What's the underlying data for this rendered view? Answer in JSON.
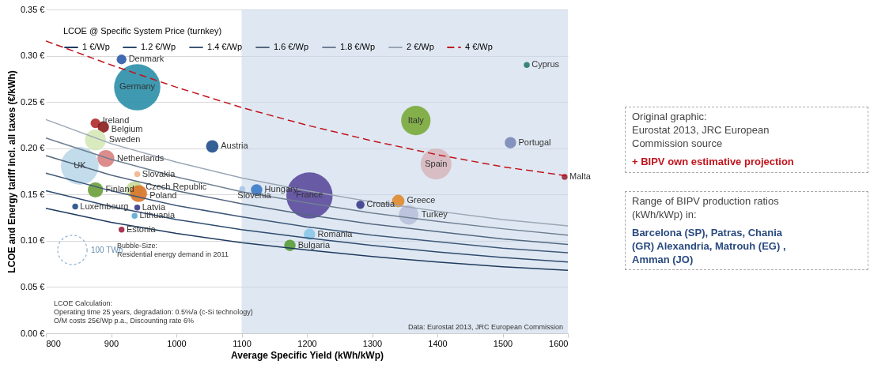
{
  "chart_data": {
    "type": "bubble",
    "xlabel": "Average Specific Yield (kWh/kWp)",
    "ylabel": "LCOE and Energy tariff incl. all taxes (€/kWh)",
    "legend_title": "LCOE @ Specific System Price (turnkey)",
    "xlim": [
      800,
      1600
    ],
    "xticks": [
      800,
      900,
      1000,
      1100,
      1200,
      1300,
      1400,
      1500,
      1600
    ],
    "ylim": [
      0,
      0.35
    ],
    "yticks": [
      {
        "value": 0,
        "label": "0.00 €"
      },
      {
        "value": 0.05,
        "label": "0.05 €"
      },
      {
        "value": 0.1,
        "label": "0.10 €"
      },
      {
        "value": 0.15,
        "label": "0.15 €"
      },
      {
        "value": 0.2,
        "label": "0.20 €"
      },
      {
        "value": 0.25,
        "label": "0.25 €"
      },
      {
        "value": 0.3,
        "label": "0.30 €"
      },
      {
        "value": 0.35,
        "label": "0.35 €"
      }
    ],
    "grid": "y",
    "legend": "top left",
    "size_legend": [
      {
        "value": 100,
        "label": "100 TWh"
      }
    ],
    "bands": [
      {
        "axis": "x",
        "from": 1100,
        "to": 1600,
        "color": "#c9d8ea"
      }
    ],
    "series": [
      {
        "name": "1 €/Wp",
        "type": "line",
        "color": "#1f3a5f",
        "x": [
          800,
          900,
          1000,
          1100,
          1200,
          1300,
          1400,
          1500,
          1600
        ],
        "values": [
          0.135,
          0.12,
          0.108,
          0.098,
          0.09,
          0.083,
          0.077,
          0.072,
          0.068
        ]
      },
      {
        "name": "1.2 €/Wp",
        "type": "line",
        "color": "#2e4a6e",
        "x": [
          800,
          900,
          1000,
          1100,
          1200,
          1300,
          1400,
          1500,
          1600
        ],
        "values": [
          0.154,
          0.137,
          0.123,
          0.112,
          0.103,
          0.095,
          0.088,
          0.082,
          0.077
        ]
      },
      {
        "name": "1.4 €/Wp",
        "type": "line",
        "color": "#3e5878",
        "x": [
          800,
          900,
          1000,
          1100,
          1200,
          1300,
          1400,
          1500,
          1600
        ],
        "values": [
          0.173,
          0.154,
          0.138,
          0.126,
          0.115,
          0.106,
          0.099,
          0.092,
          0.087
        ]
      },
      {
        "name": "1.6 €/Wp",
        "type": "line",
        "color": "#53677f",
        "x": [
          800,
          900,
          1000,
          1100,
          1200,
          1300,
          1400,
          1500,
          1600
        ],
        "values": [
          0.192,
          0.171,
          0.154,
          0.14,
          0.128,
          0.118,
          0.11,
          0.102,
          0.096
        ]
      },
      {
        "name": "1.8 €/Wp",
        "type": "line",
        "color": "#6f7f92",
        "x": [
          800,
          900,
          1000,
          1100,
          1200,
          1300,
          1400,
          1500,
          1600
        ],
        "values": [
          0.211,
          0.188,
          0.169,
          0.153,
          0.141,
          0.13,
          0.121,
          0.113,
          0.106
        ]
      },
      {
        "name": "2 €/Wp",
        "type": "line",
        "color": "#9aa6b4",
        "x": [
          800,
          900,
          1000,
          1100,
          1200,
          1300,
          1400,
          1500,
          1600
        ],
        "values": [
          0.231,
          0.205,
          0.185,
          0.168,
          0.154,
          0.142,
          0.132,
          0.123,
          0.116
        ]
      },
      {
        "name": "4 €/Wp",
        "type": "line",
        "color": "#c0141c",
        "line_style": "dashed",
        "x": [
          800,
          900,
          1000,
          1100,
          1200,
          1300,
          1400,
          1500,
          1600
        ],
        "values": [
          0.316,
          0.29,
          0.266,
          0.244,
          0.225,
          0.208,
          0.193,
          0.18,
          0.17
        ]
      },
      {
        "name": "Denmark",
        "color": "#2e5aa8",
        "x": [
          916
        ],
        "values": [
          0.296
        ],
        "sizes": [
          11
        ]
      },
      {
        "name": "Germany",
        "color": "#2a8fa8",
        "x": [
          940
        ],
        "values": [
          0.266
        ],
        "sizes": [
          247
        ]
      },
      {
        "name": "Ireland",
        "color": "#b02a2a",
        "x": [
          876
        ],
        "values": [
          0.227
        ],
        "sizes": [
          11
        ]
      },
      {
        "name": "Belgium",
        "color": "#8a1c1c",
        "x": [
          888
        ],
        "values": [
          0.223
        ],
        "sizes": [
          15
        ]
      },
      {
        "name": "Sweden",
        "color": "#d6e8b8",
        "x": [
          876
        ],
        "values": [
          0.209
        ],
        "sizes": [
          51
        ]
      },
      {
        "name": "Netherlands",
        "color": "#d98080",
        "x": [
          892
        ],
        "values": [
          0.189
        ],
        "sizes": [
          33
        ]
      },
      {
        "name": "UK",
        "color": "#bcd8ea",
        "x": [
          852
        ],
        "values": [
          0.181
        ],
        "sizes": [
          165
        ]
      },
      {
        "name": "Slovakia",
        "color": "#f0b48a",
        "x": [
          940
        ],
        "values": [
          0.172
        ],
        "sizes": [
          4
        ]
      },
      {
        "name": "Austria",
        "color": "#1f4e8c",
        "x": [
          1055
        ],
        "values": [
          0.202
        ],
        "sizes": [
          18
        ]
      },
      {
        "name": "Finland",
        "color": "#6a9e3a",
        "x": [
          876
        ],
        "values": [
          0.155
        ],
        "sizes": [
          27
        ]
      },
      {
        "name": "Czech Republic",
        "color": "#c5dc9a",
        "x": [
          936
        ],
        "values": [
          0.155
        ],
        "sizes": [
          33
        ]
      },
      {
        "name": "Poland",
        "color": "#d9742a",
        "x": [
          942
        ],
        "values": [
          0.151
        ],
        "sizes": [
          33
        ]
      },
      {
        "name": "Luxembourg",
        "color": "#1f4e8c",
        "x": [
          845
        ],
        "values": [
          0.137
        ],
        "sizes": [
          4
        ]
      },
      {
        "name": "Latvia",
        "color": "#3a3a8a",
        "x": [
          940
        ],
        "values": [
          0.136
        ],
        "sizes": [
          4
        ]
      },
      {
        "name": "Lithuania",
        "color": "#5aaad0",
        "x": [
          936
        ],
        "values": [
          0.127
        ],
        "sizes": [
          4
        ]
      },
      {
        "name": "Estonia",
        "color": "#a02040",
        "x": [
          916
        ],
        "values": [
          0.112
        ],
        "sizes": [
          4
        ]
      },
      {
        "name": "Hungary",
        "color": "#3a7ac8",
        "x": [
          1123
        ],
        "values": [
          0.155
        ],
        "sizes": [
          15
        ]
      },
      {
        "name": "Slovenia",
        "color": "#a8c8e8",
        "x": [
          1101
        ],
        "values": [
          0.156
        ],
        "sizes": [
          4
        ]
      },
      {
        "name": "France",
        "color": "#5b4a9c",
        "x": [
          1204
        ],
        "values": [
          0.149
        ],
        "sizes": [
          247
        ]
      },
      {
        "name": "Croatia",
        "color": "#3a3a8a",
        "x": [
          1282
        ],
        "values": [
          0.139
        ],
        "sizes": [
          8
        ]
      },
      {
        "name": "Greece",
        "color": "#e08a2a",
        "x": [
          1340
        ],
        "values": [
          0.143
        ],
        "sizes": [
          18
        ]
      },
      {
        "name": "Turkey",
        "color": "#b8c0dc",
        "x": [
          1356
        ],
        "values": [
          0.128
        ],
        "sizes": [
          44
        ]
      },
      {
        "name": "Romania",
        "color": "#8ac8e8",
        "x": [
          1204
        ],
        "values": [
          0.107
        ],
        "sizes": [
          15
        ]
      },
      {
        "name": "Bulgaria",
        "color": "#5a9a3a",
        "x": [
          1174
        ],
        "values": [
          0.095
        ],
        "sizes": [
          15
        ]
      },
      {
        "name": "Italy",
        "color": "#7aaa3a",
        "x": [
          1367
        ],
        "values": [
          0.23
        ],
        "sizes": [
          100
        ]
      },
      {
        "name": "Portugal",
        "color": "#7a88b8",
        "x": [
          1512
        ],
        "values": [
          0.206
        ],
        "sizes": [
          15
        ]
      },
      {
        "name": "Spain",
        "color": "#d8b8c0",
        "x": [
          1398
        ],
        "values": [
          0.183
        ],
        "sizes": [
          110
        ]
      },
      {
        "name": "Cyprus",
        "color": "#2a7a6a",
        "x": [
          1537
        ],
        "values": [
          0.29
        ],
        "sizes": [
          4
        ]
      },
      {
        "name": "Malta",
        "color": "#9a2a3a",
        "x": [
          1595
        ],
        "values": [
          0.169
        ],
        "sizes": [
          4
        ]
      }
    ],
    "annotations": [
      "Bubble-Size:\nResidential energy demand in 2011",
      "LCOE Calculation:\nOperating time 25 years, degradation: 0.5%/a (c-Si technology)\nO/M costs 25€/Wp p.a., Discounting rate 6%",
      "Data: Eurostat 2013, JRC European Commission",
      "Original graphic:\nEurostat 2013, JRC European\nCommission source",
      "+ BIPV own estimative projection",
      "Range of BIPV production ratios\n(kWh/kWp) in:",
      "Barcelona (SP), Patras, Chania\n(GR) Alexandria, Matrouh (EG) ,\nAmman (JO)"
    ]
  }
}
